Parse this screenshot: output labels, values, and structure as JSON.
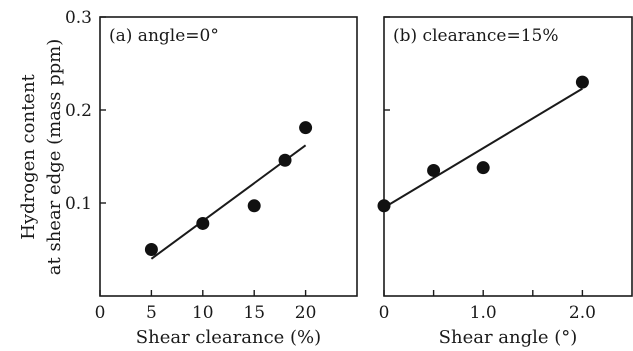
{
  "chart_data": {
    "type": "scatter",
    "ylabel_lines": [
      "Hydrogen content",
      "at shear edge (mass ppm)"
    ],
    "ylim": [
      0,
      0.3
    ],
    "y_ticks": [
      0.1,
      0.2,
      0.3
    ],
    "y_tick_labels": [
      "0.1",
      "0.2",
      "0.3"
    ],
    "colors": {
      "axis": "#1a1a1a",
      "marker": "#111111"
    },
    "panels": [
      {
        "label": "(a) angle=0°",
        "xlabel": "Shear clearance (%)",
        "xlim": [
          0,
          25
        ],
        "x_ticks": [
          0,
          5,
          10,
          15,
          20
        ],
        "x_tick_labels": [
          "0",
          "5",
          "10",
          "15",
          "20"
        ],
        "points": [
          {
            "x": 5,
            "y": 0.05
          },
          {
            "x": 10,
            "y": 0.078
          },
          {
            "x": 15,
            "y": 0.097
          },
          {
            "x": 18,
            "y": 0.146
          },
          {
            "x": 20,
            "y": 0.181
          }
        ],
        "fit_line": [
          {
            "x": 5,
            "y": 0.04
          },
          {
            "x": 20,
            "y": 0.162
          }
        ]
      },
      {
        "label": "(b) clearance=15%",
        "xlabel": "Shear angle (°)",
        "xlim": [
          0,
          2.5
        ],
        "x_ticks": [
          0,
          0.5,
          1.0,
          1.5,
          2.0
        ],
        "x_tick_labels": [
          "0",
          "",
          "1.0",
          "",
          "2.0"
        ],
        "points": [
          {
            "x": 0,
            "y": 0.097
          },
          {
            "x": 0.5,
            "y": 0.135
          },
          {
            "x": 1.0,
            "y": 0.138
          },
          {
            "x": 2.0,
            "y": 0.23
          }
        ],
        "fit_line": [
          {
            "x": 0,
            "y": 0.095
          },
          {
            "x": 2.0,
            "y": 0.223
          }
        ]
      }
    ]
  }
}
